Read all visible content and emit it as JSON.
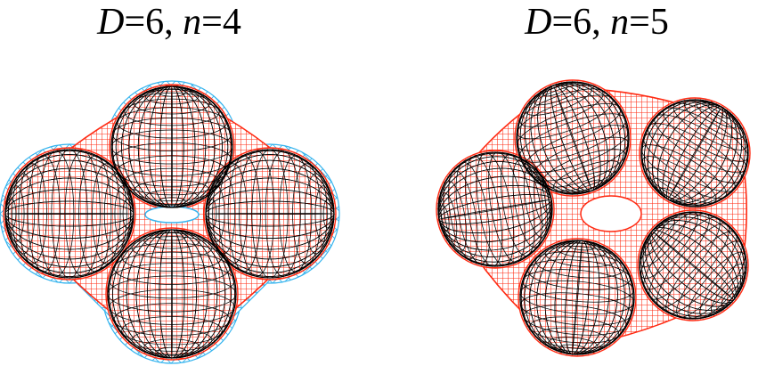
{
  "panels": [
    {
      "title": {
        "d_symbol": "D",
        "d_value": "=6, ",
        "n_symbol": "n",
        "n_value": "=4"
      },
      "lobe_count": 4,
      "mesh_colors": {
        "outer": "#36b4ee",
        "inner": "#ff2a12",
        "spheres": "#000000"
      }
    },
    {
      "title": {
        "d_symbol": "D",
        "d_value": "=6, ",
        "n_symbol": "n",
        "n_value": "=5"
      },
      "lobe_count": 5,
      "mesh_colors": {
        "inner": "#ff2a12",
        "spheres": "#000000"
      }
    }
  ]
}
